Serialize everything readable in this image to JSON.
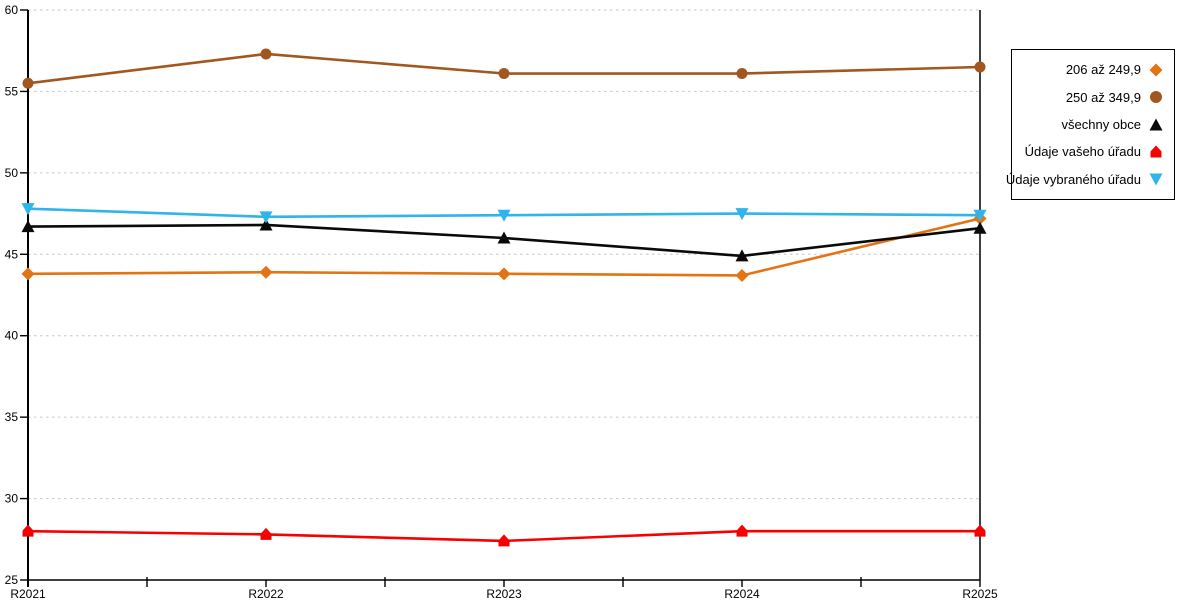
{
  "chart_data": {
    "type": "line",
    "title": "",
    "xlabel": "",
    "ylabel": "",
    "grid": true,
    "legend_position": "right",
    "ylim": [
      25,
      60
    ],
    "y_ticks": [
      25,
      30,
      35,
      40,
      45,
      50,
      55,
      60
    ],
    "x": [
      "R2021",
      "R2022",
      "R2023",
      "R2024",
      "R2025"
    ],
    "series": [
      {
        "name": "206 až 249,9",
        "marker": "diamond",
        "color": "#E47313",
        "values": [
          43.8,
          43.9,
          43.8,
          43.7,
          47.2
        ]
      },
      {
        "name": "250 až 349,9",
        "marker": "circle",
        "color": "#A2571F",
        "values": [
          55.5,
          57.3,
          56.1,
          56.1,
          56.5
        ]
      },
      {
        "name": "všechny obce",
        "marker": "triangle-up",
        "color": "#0A0A0A",
        "values": [
          46.7,
          46.8,
          46.0,
          44.9,
          46.6
        ]
      },
      {
        "name": "Údaje vašeho úřadu",
        "marker": "pentagon",
        "color": "#F80000",
        "values": [
          28.0,
          27.8,
          27.4,
          28.0,
          28.0
        ]
      },
      {
        "name": "Údaje vybraného úřadu",
        "marker": "triangle-down",
        "color": "#2FB4EC",
        "values": [
          47.8,
          47.3,
          47.4,
          47.5,
          47.4
        ]
      }
    ],
    "colors": {
      "axis": "#000000",
      "gridline": "#c6c6c6",
      "background": "#ffffff"
    }
  }
}
